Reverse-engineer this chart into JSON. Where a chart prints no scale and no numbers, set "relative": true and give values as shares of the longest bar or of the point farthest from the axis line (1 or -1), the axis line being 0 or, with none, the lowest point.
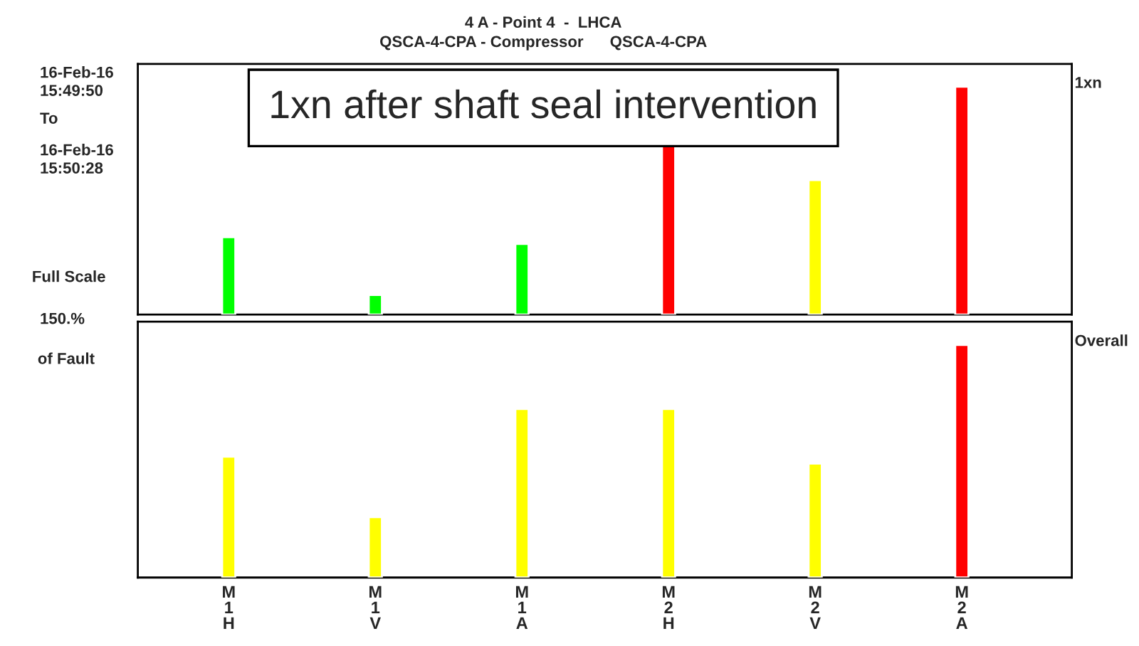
{
  "chart_data": [
    {
      "type": "bar",
      "title": "4 A - Point 4  -  LHCA",
      "subtitle": "QSCA-4-CPA - Compressor      QSCA-4-CPA",
      "y2label": "1xn",
      "relative": true,
      "categories": [
        null,
        null,
        null,
        null,
        null,
        null
      ],
      "values": [
        0.34,
        0.086,
        0.31,
        0.75,
        0.59,
        1
      ],
      "colors": [
        "#00ff00",
        "#00ff00",
        "#00ff00",
        "#ff0000",
        "#ffff00",
        "#ff0000"
      ],
      "annotations": [
        "1xn after shaft seal intervention",
        "16-Feb-16\n15:49:50",
        "To",
        "16-Feb-16\n15:50:28",
        "Full Scale",
        "150.%",
        "of Fault"
      ]
    },
    {
      "type": "bar",
      "y2label": "Overall",
      "relative": true,
      "tick_labels": "x",
      "categories": [
        "M 1 H",
        "M 1 V",
        "M 1 A",
        "M 2 H",
        "M 2 V",
        "M 2 A"
      ],
      "values": [
        0.52,
        0.26,
        0.725,
        0.725,
        0.49,
        1
      ],
      "colors": [
        "#ffff00",
        "#ffff00",
        "#ffff00",
        "#ffff00",
        "#ffff00",
        "#ff0000"
      ]
    }
  ]
}
